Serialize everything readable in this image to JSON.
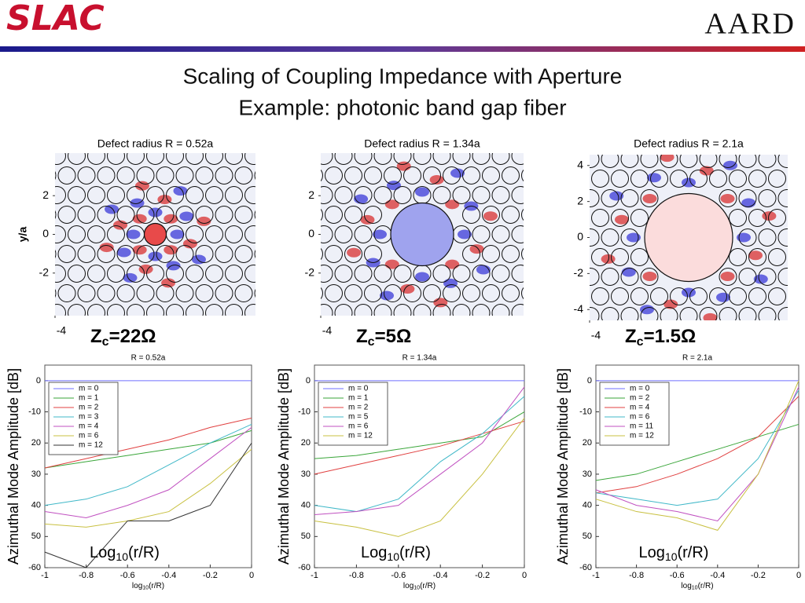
{
  "header": {
    "logo": "SLAC",
    "org": "AARD"
  },
  "title": [
    "Scaling of Coupling Impedance with Aperture",
    "Example: photonic band gap fiber"
  ],
  "panels": [
    {
      "field_plot": {
        "title": "Defect radius R = 0.52a",
        "y_label": "y/a",
        "xlim": [
          -4,
          4
        ],
        "ylim": [
          -4.2,
          4.2
        ],
        "xticks": [
          -4
        ],
        "yticks": [
          2,
          0,
          -2
        ]
      },
      "impedance": {
        "symbol": "Z",
        "subscript": "c",
        "value": "=22Ω"
      }
    },
    {
      "field_plot": {
        "title": "Defect radius R = 1.34a",
        "xlim": [
          -4,
          4
        ],
        "ylim": [
          -4.2,
          4.2
        ],
        "xticks": [
          -4
        ],
        "yticks": [
          2,
          0,
          -2
        ]
      },
      "impedance": {
        "symbol": "Z",
        "subscript": "c",
        "value": "=5Ω"
      }
    },
    {
      "field_plot": {
        "title": "Defect radius R = 2.1a",
        "xlim": [
          -4,
          4
        ],
        "ylim": [
          -4.6,
          4.6
        ],
        "xticks": [
          -4
        ],
        "yticks": [
          4,
          2,
          0,
          -2,
          -4
        ]
      },
      "impedance": {
        "symbol": "Z",
        "subscript": "c",
        "value": "=1.5Ω"
      }
    }
  ],
  "chart_data": [
    {
      "type": "line",
      "title": "R = 0.52a",
      "y_label": "Azimuthal Mode Amplitude [dB]",
      "x_label": {
        "base": "log",
        "subscript": "10",
        "rest": "(r/R)"
      },
      "annotation": {
        "base": "Log",
        "subscript": "10",
        "rest": "(r/R)"
      },
      "x": [
        -1,
        -0.8,
        -0.6,
        -0.4,
        -0.2,
        0
      ],
      "xlim": [
        -1,
        0
      ],
      "ylim": [
        -60,
        5
      ],
      "xticks": [
        -1,
        -0.8,
        -0.6,
        -0.4,
        -0.2,
        0
      ],
      "yticks": [
        0,
        -10,
        {
          "value": -20,
          "label": "20"
        },
        {
          "value": -30,
          "label": "30"
        },
        {
          "value": -40,
          "label": "40"
        },
        {
          "value": -50,
          "label": "50"
        },
        -60
      ],
      "series": [
        {
          "name": "m = 0",
          "color": "#6f6fff",
          "values": [
            0,
            0,
            0,
            0,
            0,
            0
          ]
        },
        {
          "name": "m = 1",
          "color": "#3aa63a",
          "values": [
            -28,
            -26,
            -24,
            -22,
            -20,
            -16
          ]
        },
        {
          "name": "m = 2",
          "color": "#e04040",
          "values": [
            -28,
            -25,
            -22,
            -19,
            -15,
            -12
          ]
        },
        {
          "name": "m = 3",
          "color": "#40b8c8",
          "values": [
            -40,
            -38,
            -34,
            -27,
            -20,
            -14
          ]
        },
        {
          "name": "m = 4",
          "color": "#c050c0",
          "values": [
            -42,
            -44,
            -40,
            -35,
            -25,
            -15
          ]
        },
        {
          "name": "m = 6",
          "color": "#c8c040",
          "values": [
            -46,
            -47,
            -45,
            -42,
            -33,
            -22
          ]
        },
        {
          "name": "m = 12",
          "color": "#333333",
          "values": [
            -55,
            -60,
            -45,
            -45,
            -40,
            -20
          ]
        }
      ]
    },
    {
      "type": "line",
      "title": "R = 1.34a",
      "y_label": "Azimuthal Mode Amplitude [dB]",
      "x_label": {
        "base": "log",
        "subscript": "10",
        "rest": "(r/R)"
      },
      "annotation": {
        "base": "Log",
        "subscript": "10",
        "rest": "(r/R)"
      },
      "x": [
        -1,
        -0.8,
        -0.6,
        -0.4,
        -0.2,
        0
      ],
      "xlim": [
        -1,
        0
      ],
      "ylim": [
        -60,
        5
      ],
      "xticks": [
        -1,
        -0.8,
        -0.6,
        -0.4,
        -0.2,
        0
      ],
      "yticks": [
        0,
        -10,
        {
          "value": -20,
          "label": "20"
        },
        {
          "value": -30,
          "label": "30"
        },
        {
          "value": -40,
          "label": "40"
        },
        {
          "value": -50,
          "label": "50"
        },
        -60
      ],
      "series": [
        {
          "name": "m = 0",
          "color": "#6f6fff",
          "values": [
            0,
            0,
            0,
            0,
            0,
            0
          ]
        },
        {
          "name": "m = 1",
          "color": "#3aa63a",
          "values": [
            -25,
            -24,
            -22,
            -20,
            -18,
            -10
          ]
        },
        {
          "name": "m = 2",
          "color": "#e04040",
          "values": [
            -30,
            -27,
            -24,
            -21,
            -17,
            -13
          ]
        },
        {
          "name": "m = 5",
          "color": "#40b8c8",
          "values": [
            -40,
            -42,
            -38,
            -26,
            -17,
            -5
          ]
        },
        {
          "name": "m = 6",
          "color": "#c050c0",
          "values": [
            -43,
            -42,
            -40,
            -30,
            -20,
            -2
          ]
        },
        {
          "name": "m = 12",
          "color": "#c8c040",
          "values": [
            -45,
            -47,
            -50,
            -45,
            -30,
            -12
          ]
        }
      ]
    },
    {
      "type": "line",
      "title": "R = 2.1a",
      "y_label": "Azimuthal Mode Amplitude [dB]",
      "x_label": {
        "base": "log",
        "subscript": "10",
        "rest": "(r/R)"
      },
      "annotation": {
        "base": "Log",
        "subscript": "10",
        "rest": "(r/R)"
      },
      "x": [
        -1,
        -0.8,
        -0.6,
        -0.4,
        -0.2,
        0
      ],
      "xlim": [
        -1,
        0
      ],
      "ylim": [
        -60,
        5
      ],
      "xticks": [
        -1,
        -0.8,
        -0.6,
        -0.4,
        -0.2,
        0
      ],
      "yticks": [
        0,
        -10,
        {
          "value": -20,
          "label": "20"
        },
        {
          "value": -30,
          "label": "30"
        },
        {
          "value": -40,
          "label": "40"
        },
        {
          "value": -50,
          "label": "50"
        },
        -60
      ],
      "series": [
        {
          "name": "m = 0",
          "color": "#6f6fff",
          "values": [
            0,
            0,
            0,
            0,
            0,
            0
          ]
        },
        {
          "name": "m = 2",
          "color": "#3aa63a",
          "values": [
            -32,
            -30,
            -26,
            -22,
            -18,
            -14
          ]
        },
        {
          "name": "m = 4",
          "color": "#e04040",
          "values": [
            -36,
            -34,
            -30,
            -25,
            -18,
            -5
          ]
        },
        {
          "name": "m = 6",
          "color": "#40b8c8",
          "values": [
            -36,
            -38,
            -40,
            -38,
            -25,
            -3
          ]
        },
        {
          "name": "m = 11",
          "color": "#c050c0",
          "values": [
            -35,
            -40,
            -42,
            -45,
            -30,
            -2
          ]
        },
        {
          "name": "m = 12",
          "color": "#c8c040",
          "values": [
            -38,
            -42,
            -44,
            -48,
            -30,
            0
          ]
        }
      ]
    }
  ]
}
